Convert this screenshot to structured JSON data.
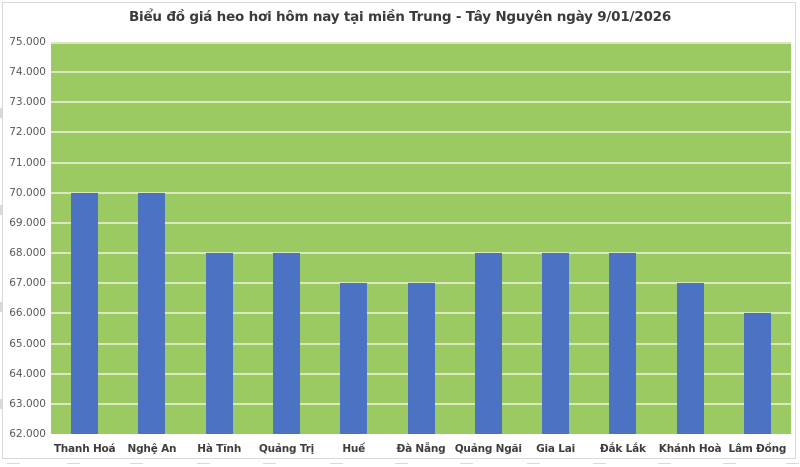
{
  "chart_data": {
    "type": "bar",
    "title": "Biểu đồ giá heo hơi hôm nay tại miền Trung - Tây Nguyên ngày 9/01/2026",
    "categories": [
      "Thanh Hoá",
      "Nghệ An",
      "Hà Tĩnh",
      "Quảng Trị",
      "Huế",
      "Đà Nẵng",
      "Quảng Ngãi",
      "Gia Lai",
      "Đắk Lắk",
      "Khánh Hoà",
      "Lâm Đồng"
    ],
    "values": [
      70000,
      70000,
      68000,
      68000,
      67000,
      67000,
      68000,
      68000,
      68000,
      67000,
      66000
    ],
    "xlabel": "",
    "ylabel": "",
    "ylim": [
      62000,
      75000
    ],
    "ytick_step": 1000,
    "ytick_labels": [
      "75.000",
      "74.000",
      "73.000",
      "72.000",
      "71.000",
      "70.000",
      "69.000",
      "68.000",
      "67.000",
      "66.000",
      "65.000",
      "64.000",
      "63.000",
      "62.000"
    ],
    "grid": true,
    "legend": false,
    "colors": {
      "bar": "#4C72C4",
      "plot_background": "#9CCA62",
      "gridline": "#DAE8C0",
      "title_text": "#3B3B3B",
      "axis_tick_text": "#595959",
      "category_text": "#3E3E3E",
      "chart_border": "#D9D9D9",
      "page_background": "#FFFFFF"
    }
  }
}
